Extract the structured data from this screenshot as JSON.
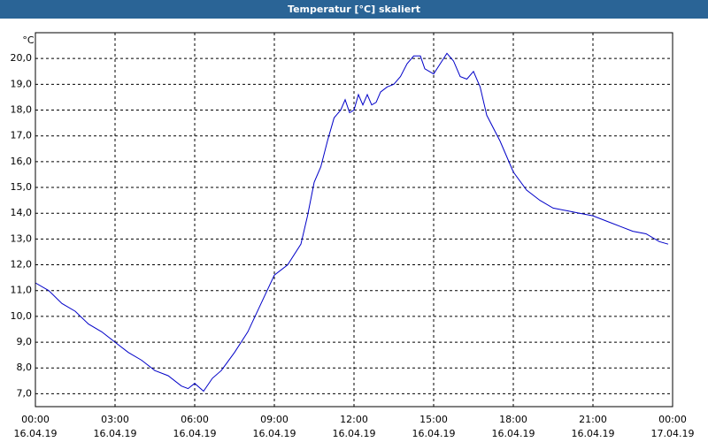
{
  "chart_data": {
    "type": "line",
    "title": "Temperatur [°C] skaliert",
    "y_unit": "°C",
    "xlim": [
      "16.04.19 00:00",
      "17.04.19 00:00"
    ],
    "xticks": [
      {
        "time": "00:00",
        "date": "16.04.19"
      },
      {
        "time": "03:00",
        "date": "16.04.19"
      },
      {
        "time": "06:00",
        "date": "16.04.19"
      },
      {
        "time": "09:00",
        "date": "16.04.19"
      },
      {
        "time": "12:00",
        "date": "16.04.19"
      },
      {
        "time": "15:00",
        "date": "16.04.19"
      },
      {
        "time": "18:00",
        "date": "16.04.19"
      },
      {
        "time": "21:00",
        "date": "16.04.19"
      },
      {
        "time": "00:00",
        "date": "17.04.19"
      }
    ],
    "ylim": [
      6.5,
      21.0
    ],
    "yticks": [
      {
        "value": 7,
        "label": "7,0"
      },
      {
        "value": 8,
        "label": "8,0"
      },
      {
        "value": 9,
        "label": "9,0"
      },
      {
        "value": 10,
        "label": "10,0"
      },
      {
        "value": 11,
        "label": "11,0"
      },
      {
        "value": 12,
        "label": "12,0"
      },
      {
        "value": 13,
        "label": "13,0"
      },
      {
        "value": 14,
        "label": "14,0"
      },
      {
        "value": 15,
        "label": "15,0"
      },
      {
        "value": 16,
        "label": "16,0"
      },
      {
        "value": 17,
        "label": "17,0"
      },
      {
        "value": 18,
        "label": "18,0"
      },
      {
        "value": 19,
        "label": "19,0"
      },
      {
        "value": 20,
        "label": "20,0"
      }
    ],
    "grid": true,
    "x": [
      "16.04.19 00:00",
      "16.04.19 00:30",
      "16.04.19 01:00",
      "16.04.19 01:30",
      "16.04.19 02:00",
      "16.04.19 02:30",
      "16.04.19 03:00",
      "16.04.19 03:30",
      "16.04.19 04:00",
      "16.04.19 04:30",
      "16.04.19 05:00",
      "16.04.19 05:30",
      "16.04.19 05:45",
      "16.04.19 06:00",
      "16.04.19 06:20",
      "16.04.19 06:40",
      "16.04.19 07:00",
      "16.04.19 07:30",
      "16.04.19 08:00",
      "16.04.19 08:30",
      "16.04.19 09:00",
      "16.04.19 09:30",
      "16.04.19 10:00",
      "16.04.19 10:15",
      "16.04.19 10:30",
      "16.04.19 10:45",
      "16.04.19 11:00",
      "16.04.19 11:15",
      "16.04.19 11:30",
      "16.04.19 11:40",
      "16.04.19 11:50",
      "16.04.19 12:00",
      "16.04.19 12:10",
      "16.04.19 12:20",
      "16.04.19 12:30",
      "16.04.19 12:40",
      "16.04.19 12:50",
      "16.04.19 13:00",
      "16.04.19 13:15",
      "16.04.19 13:30",
      "16.04.19 13:45",
      "16.04.19 14:00",
      "16.04.19 14:15",
      "16.04.19 14:30",
      "16.04.19 14:40",
      "16.04.19 15:00",
      "16.04.19 15:15",
      "16.04.19 15:30",
      "16.04.19 15:45",
      "16.04.19 16:00",
      "16.04.19 16:15",
      "16.04.19 16:30",
      "16.04.19 16:45",
      "16.04.19 17:00",
      "16.04.19 17:30",
      "16.04.19 17:45",
      "16.04.19 18:00",
      "16.04.19 18:30",
      "16.04.19 19:00",
      "16.04.19 19:30",
      "16.04.19 20:00",
      "16.04.19 20:30",
      "16.04.19 21:00",
      "16.04.19 21:30",
      "16.04.19 22:00",
      "16.04.19 22:30",
      "16.04.19 23:00",
      "16.04.19 23:30",
      "16.04.19 23:50"
    ],
    "series": [
      {
        "name": "Temperatur",
        "color": "#0000c8",
        "values": [
          11.3,
          11.0,
          10.5,
          10.2,
          9.7,
          9.4,
          9.0,
          8.6,
          8.3,
          7.9,
          7.7,
          7.3,
          7.2,
          7.4,
          7.1,
          7.6,
          7.9,
          8.6,
          9.4,
          10.5,
          11.6,
          12.0,
          12.8,
          13.9,
          15.2,
          15.8,
          16.8,
          17.7,
          18.0,
          18.4,
          17.9,
          18.0,
          18.6,
          18.2,
          18.6,
          18.2,
          18.3,
          18.7,
          18.9,
          19.0,
          19.3,
          19.8,
          20.1,
          20.1,
          19.6,
          19.4,
          19.8,
          20.2,
          19.9,
          19.3,
          19.2,
          19.5,
          18.9,
          17.8,
          16.8,
          16.2,
          15.6,
          14.9,
          14.5,
          14.2,
          14.1,
          14.0,
          13.9,
          13.7,
          13.5,
          13.3,
          13.2,
          12.9,
          12.8
        ]
      }
    ]
  }
}
